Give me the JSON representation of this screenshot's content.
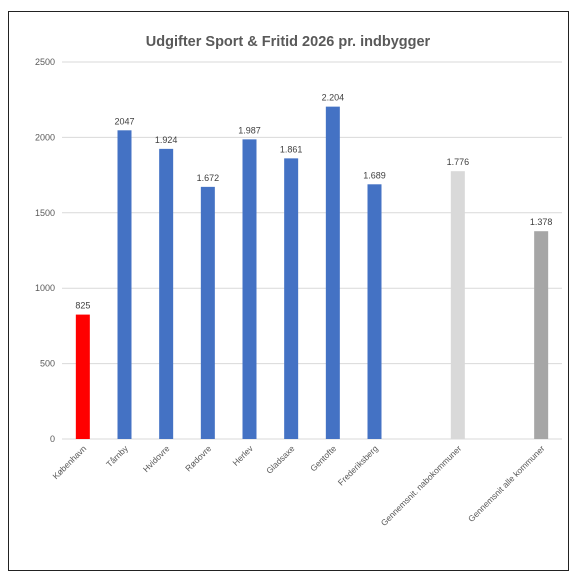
{
  "chart_data": {
    "type": "bar",
    "title": "Udgifter Sport & Fritid 2026 pr. indbygger",
    "xlabel": "",
    "ylabel": "",
    "ylim": [
      0,
      2500
    ],
    "yticks": [
      0,
      500,
      1000,
      1500,
      2000,
      2500
    ],
    "yticklabels": [
      "0",
      "500",
      "1000",
      "1500",
      "2000",
      "2500"
    ],
    "grid": true,
    "legend": "none",
    "categories": [
      "København",
      "Tårnby",
      "Hvidovre",
      "Rødovre",
      "Herlev",
      "Gladsaxe",
      "Gentofte",
      "Frederiksberg",
      "",
      "Gennemsnit. nabokommuner",
      "",
      "Gennemsnit alle kommuner"
    ],
    "values": [
      825,
      2047,
      1924,
      1672,
      1987,
      1861,
      2204,
      1689,
      null,
      1776,
      null,
      1378
    ],
    "data_labels": [
      "825",
      "2047",
      "1.924",
      "1.672",
      "1.987",
      "1.861",
      "2.204",
      "1.689",
      "",
      "1.776",
      "",
      "1.378"
    ],
    "colors": [
      "#ff0000",
      "#4472c4",
      "#4472c4",
      "#4472c4",
      "#4472c4",
      "#4472c4",
      "#4472c4",
      "#4472c4",
      "",
      "#d9d9d9",
      "",
      "#a6a6a6"
    ]
  }
}
